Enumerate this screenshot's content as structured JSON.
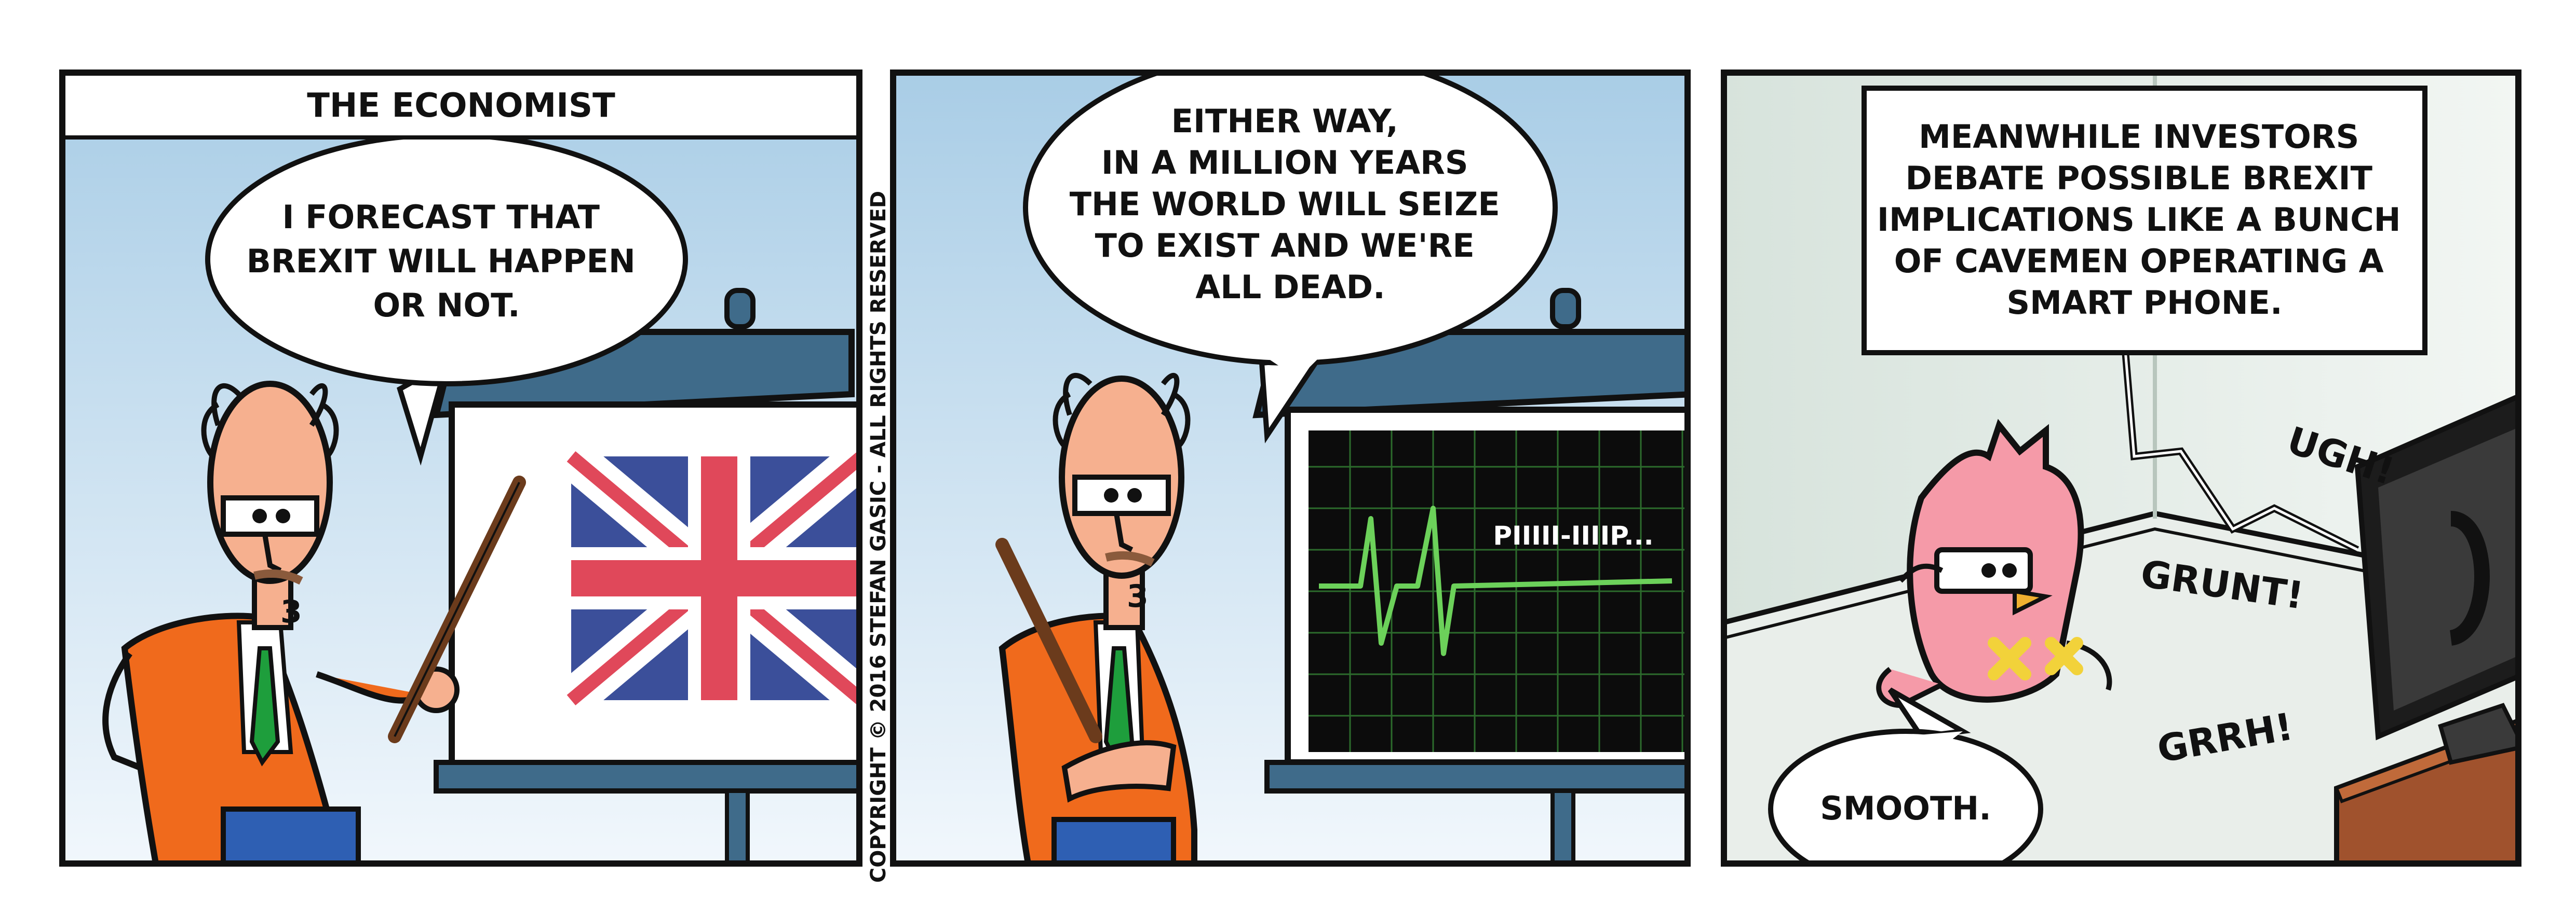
{
  "panel1": {
    "caption": "THE ECONOMIST",
    "speech": [
      "I FORECAST THAT",
      "BREXIT WILL HAPPEN",
      "OR NOT."
    ]
  },
  "copyright": "COPYRIGHT © 2016 STEFAN GASIC - ALL RIGHTS RESERVED",
  "panel2": {
    "speech": [
      "EITHER WAY,",
      "IN A MILLION YEARS",
      "THE WORLD WILL SEIZE",
      "TO EXIST AND WE'RE",
      "ALL DEAD."
    ],
    "monitor_text": "PIIIII-IIIIP..."
  },
  "panel3": {
    "caption": [
      "MEANWHILE INVESTORS",
      "DEBATE POSSIBLE BREXIT",
      "IMPLICATIONS LIKE A BUNCH",
      "OF CAVEMEN OPERATING A",
      "SMART PHONE."
    ],
    "sfx": [
      "UGH!",
      "GRUNT!",
      "GRRH!"
    ],
    "speech": "SMOOTH."
  },
  "colors": {
    "sky_top": "#a9cde6",
    "sky_bottom": "#eef5fb",
    "flag_blue": "#3b4f9a",
    "flag_red": "#e0485a",
    "jacket": "#f06a1c",
    "board": "#3f6b8a",
    "ecg": "#6cd15a",
    "wall": "#dfe9e3",
    "bird": "#f59aa8",
    "desk": "#a0522d"
  }
}
